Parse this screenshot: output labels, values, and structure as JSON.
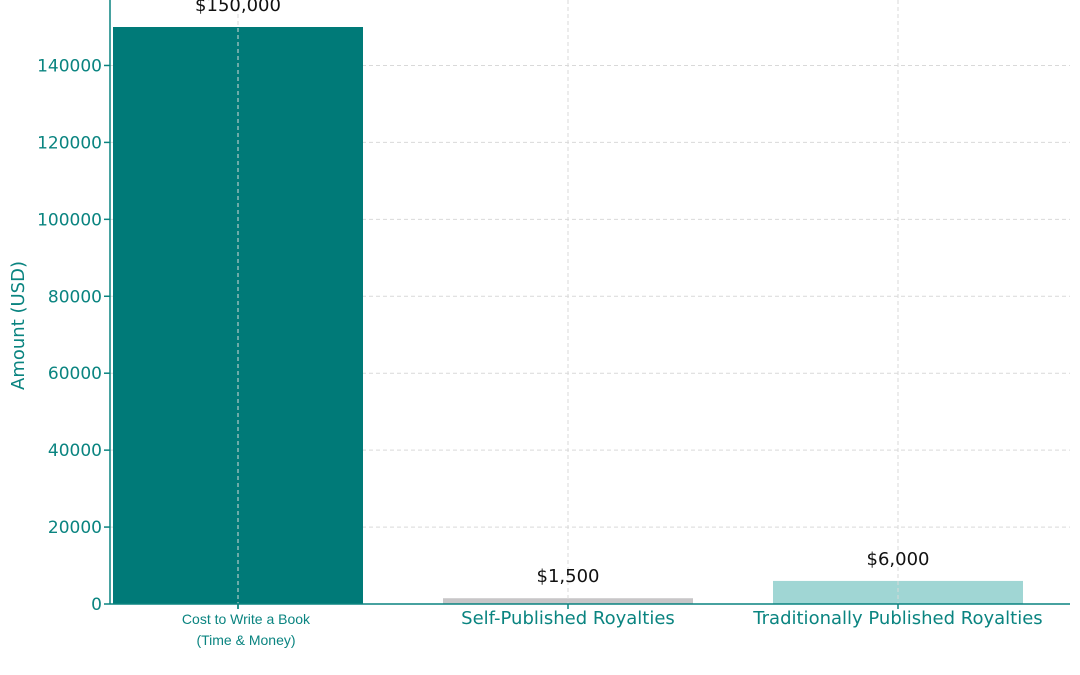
{
  "chart_data": {
    "type": "bar",
    "categories": [
      [
        "Cost to Write a Book",
        "(Time & Money)"
      ],
      [
        "Self-Published Royalties"
      ],
      [
        "Traditionally Published Royalties"
      ]
    ],
    "values": [
      150000,
      1500,
      6000
    ],
    "data_labels": [
      "$150,000",
      "$1,500",
      "$6,000"
    ],
    "colors": [
      "#007a78",
      "#c8c6c8",
      "#a0d6d4"
    ],
    "title": "",
    "xlabel": "",
    "ylabel": "Amount (USD)",
    "ylim": [
      0,
      150000
    ],
    "yticks": [
      0,
      20000,
      40000,
      60000,
      80000,
      100000,
      120000,
      140000
    ],
    "ytick_labels": [
      "0",
      "20000",
      "40000",
      "60000",
      "80000",
      "100000",
      "120000",
      "140000"
    ],
    "grid": true,
    "legend": "none",
    "accent_color": "#0a8480"
  }
}
